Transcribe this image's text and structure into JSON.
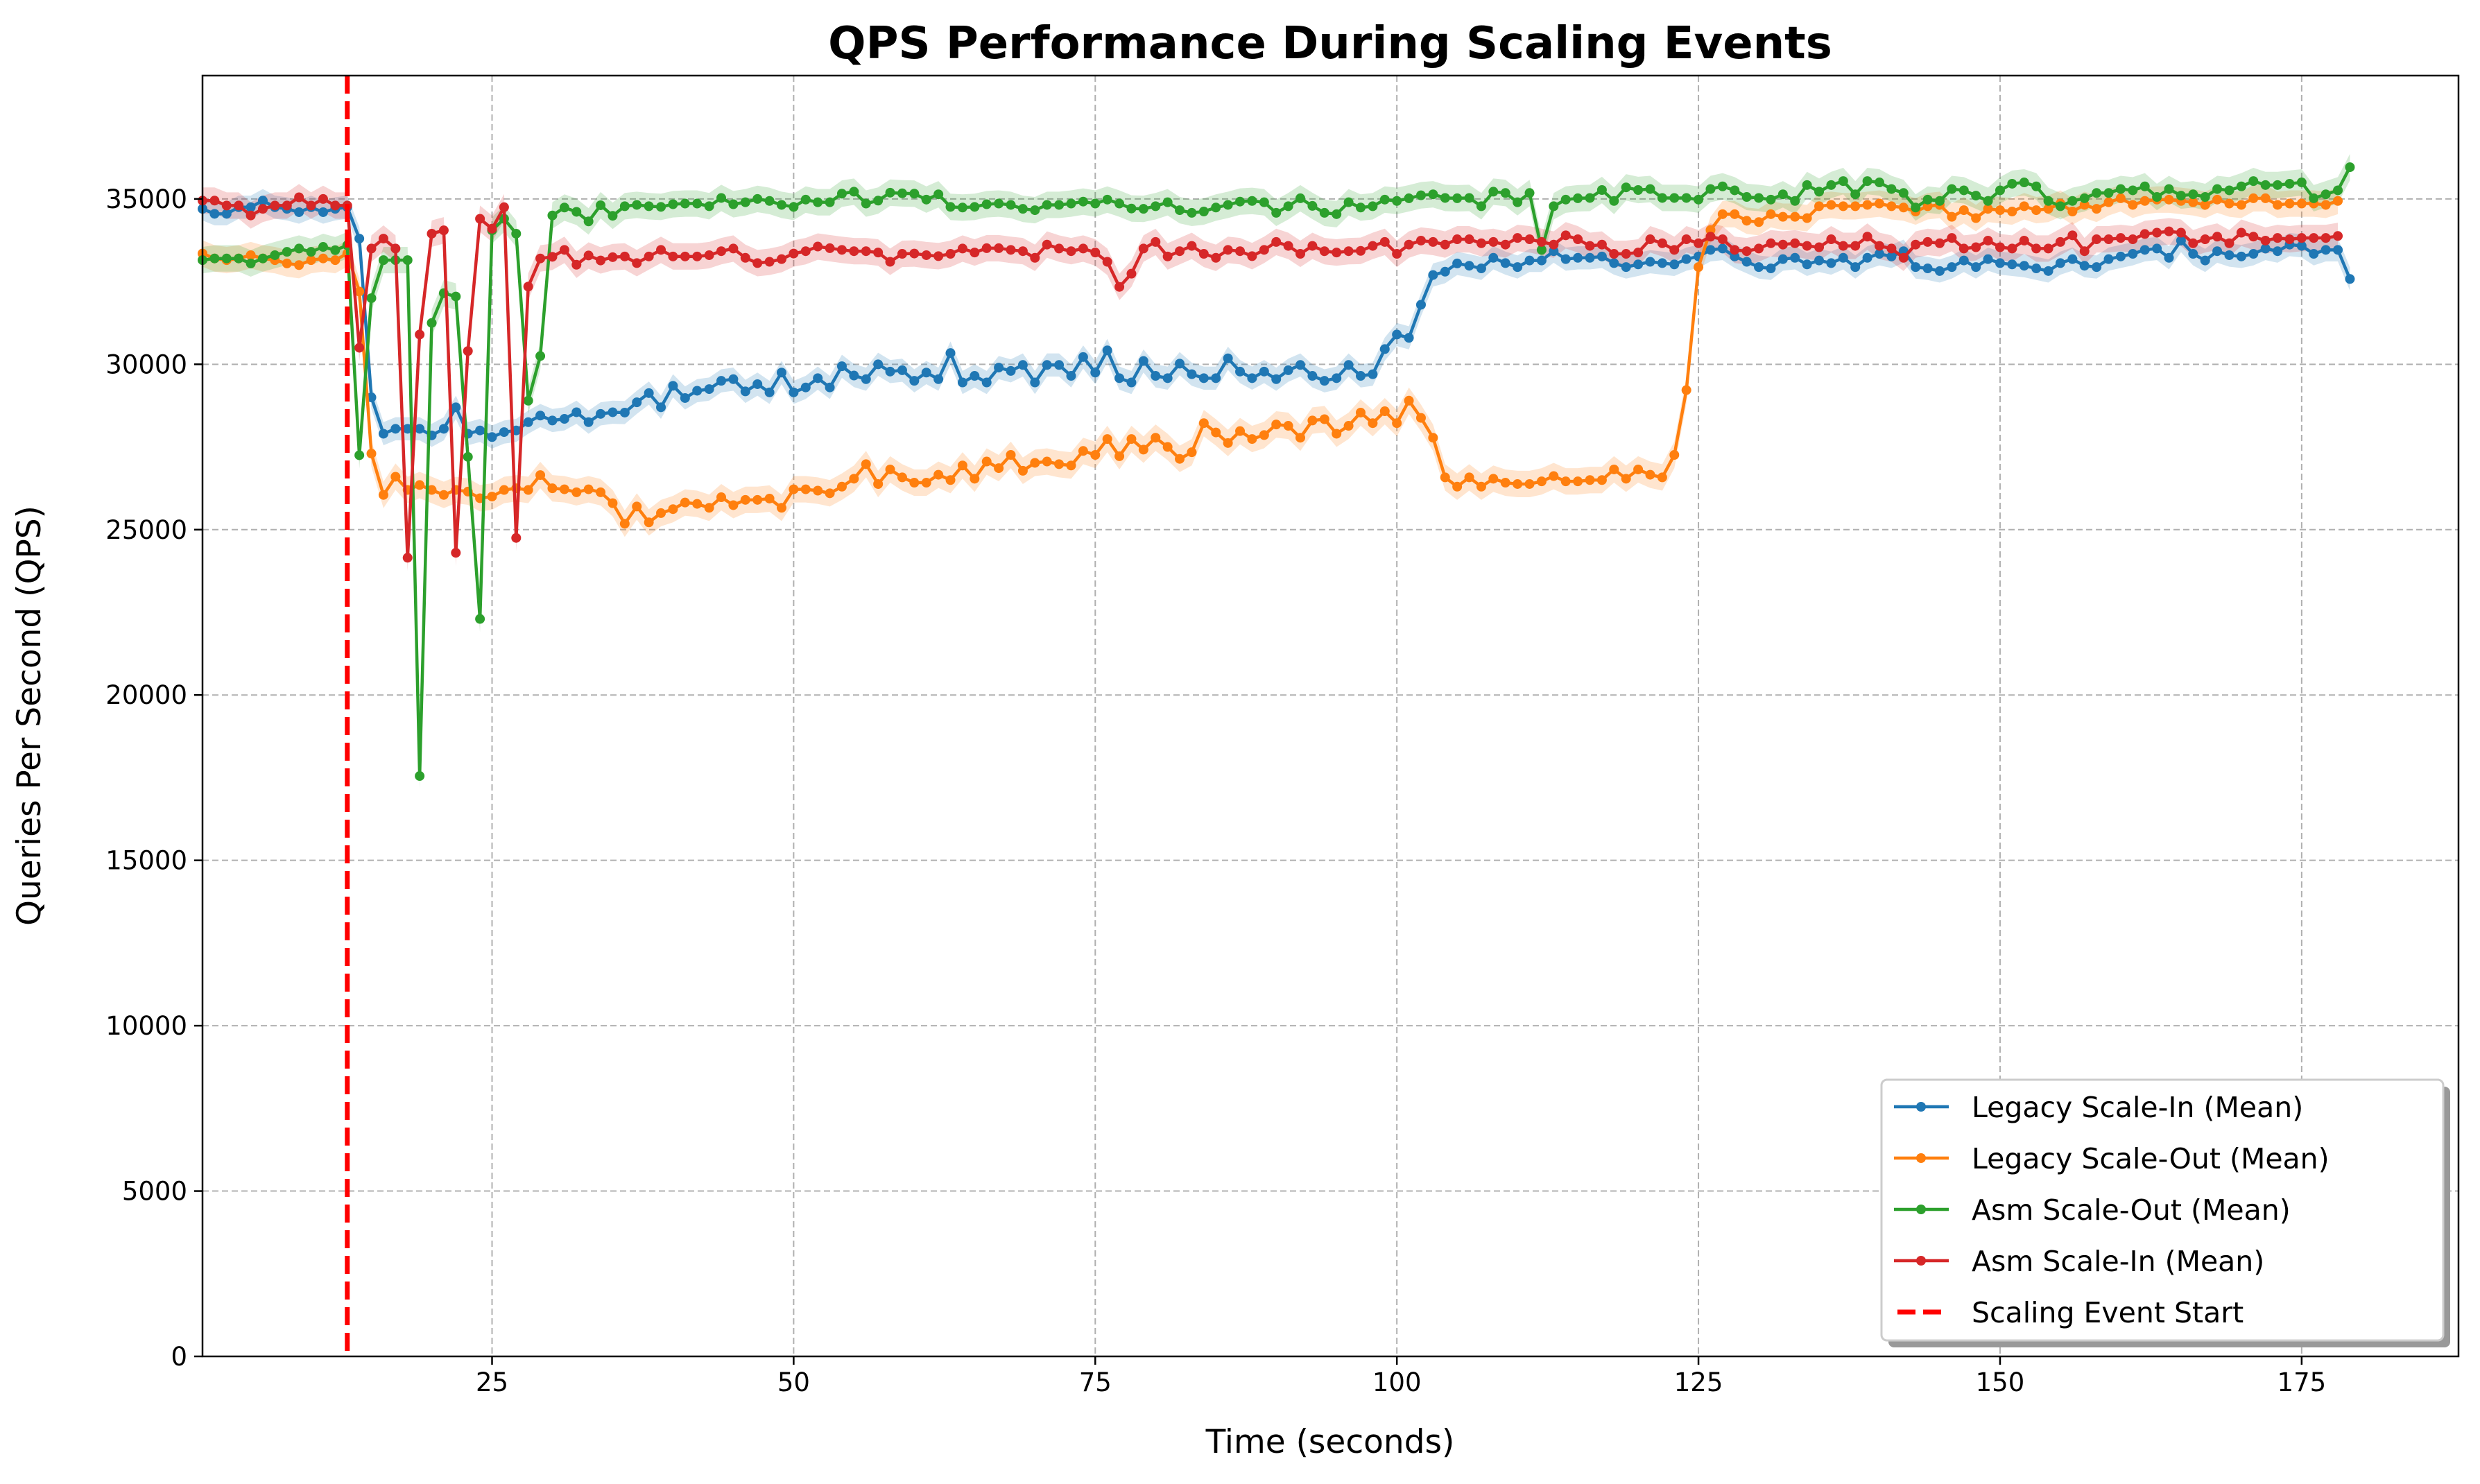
{
  "chart_data": {
    "type": "line",
    "title": "QPS Performance During Scaling Events",
    "xlabel": "Time (seconds)",
    "ylabel": "Queries Per Second (QPS)",
    "xlim": [
      1,
      188
    ],
    "ylim": [
      0,
      38730
    ],
    "xticks": [
      25,
      50,
      75,
      100,
      125,
      150,
      175
    ],
    "yticks": [
      0,
      5000,
      10000,
      15000,
      20000,
      25000,
      30000,
      35000
    ],
    "grid": true,
    "legend_position": "lower-right",
    "x_start": 1,
    "event_line": {
      "label": "Scaling Event Start",
      "x": 13,
      "color": "#ff0000",
      "style": "dashed"
    },
    "series": [
      {
        "name": "Legacy Scale-In (Mean)",
        "color": "#1f77b4",
        "band_halfwidth": 350,
        "values": [
          34700,
          34550,
          34550,
          34750,
          34750,
          34950,
          34750,
          34700,
          34600,
          34750,
          34600,
          34700,
          34750,
          33800,
          29000,
          27900,
          28050,
          28050,
          28050,
          27850,
          28050,
          28700,
          27900,
          28000,
          27800,
          27950,
          28000,
          28250,
          28450,
          28300,
          28350,
          28550,
          28250,
          28500,
          28550,
          28540,
          28850,
          29130,
          28700,
          29350,
          28980,
          29200,
          29250,
          29500,
          29550,
          29180,
          29400,
          29150,
          29750,
          29150,
          29300,
          29580,
          29300,
          29940,
          29660,
          29550,
          30000,
          29780,
          29820,
          29500,
          29750,
          29550,
          30340,
          29450,
          29650,
          29450,
          29900,
          29800,
          29980,
          29450,
          29980,
          29980,
          29650,
          30220,
          29750,
          30420,
          29580,
          29450,
          30100,
          29650,
          29580,
          30020,
          29700,
          29580,
          29580,
          30180,
          29780,
          29580,
          29780,
          29550,
          29820,
          29980,
          29650,
          29500,
          29580,
          29980,
          29650,
          29700,
          30460,
          30900,
          30800,
          31800,
          32700,
          32800,
          33050,
          32980,
          32900,
          33220,
          33060,
          32940,
          33140,
          33140,
          33420,
          33180,
          33220,
          33220,
          33260,
          33060,
          32940,
          33020,
          33100,
          33060,
          33020,
          33180,
          33260,
          33460,
          33500,
          33260,
          33100,
          32940,
          32900,
          33180,
          33220,
          33020,
          33140,
          33060,
          33220,
          32940,
          33220,
          33340,
          33260,
          33420,
          32940,
          32900,
          32820,
          32940,
          33140,
          32940,
          33180,
          33060,
          33020,
          32980,
          32900,
          32820,
          33060,
          33180,
          32980,
          32940,
          33180,
          33260,
          33340,
          33460,
          33500,
          33220,
          33740,
          33340,
          33140,
          33420,
          33300,
          33260,
          33340,
          33500,
          33420,
          33620,
          33580,
          33340,
          33460,
          33460,
          32580
        ]
      },
      {
        "name": "Legacy Scale-Out (Mean)",
        "color": "#ff7f0e",
        "band_halfwidth": 400,
        "values": [
          33350,
          33200,
          33150,
          33200,
          33300,
          33200,
          33150,
          33050,
          33000,
          33150,
          33200,
          33150,
          33350,
          32200,
          27300,
          26050,
          26600,
          26200,
          26350,
          26200,
          26050,
          26200,
          26150,
          25950,
          26000,
          26200,
          26250,
          26200,
          26650,
          26250,
          26220,
          26130,
          26220,
          26130,
          25800,
          25180,
          25700,
          25220,
          25500,
          25620,
          25820,
          25780,
          25660,
          25980,
          25740,
          25900,
          25900,
          25940,
          25660,
          26220,
          26220,
          26180,
          26100,
          26300,
          26540,
          26980,
          26380,
          26820,
          26580,
          26420,
          26420,
          26660,
          26500,
          26940,
          26540,
          27060,
          26860,
          27260,
          26780,
          27020,
          27060,
          26980,
          26940,
          27380,
          27260,
          27740,
          27220,
          27740,
          27420,
          27780,
          27500,
          27140,
          27340,
          28220,
          27940,
          27620,
          27980,
          27740,
          27860,
          28180,
          28140,
          27780,
          28300,
          28340,
          27900,
          28140,
          28540,
          28220,
          28580,
          28220,
          28900,
          28380,
          27780,
          26580,
          26300,
          26580,
          26300,
          26540,
          26420,
          26380,
          26380,
          26460,
          26620,
          26460,
          26460,
          26500,
          26500,
          26820,
          26540,
          26820,
          26660,
          26580,
          27260,
          29220,
          32940,
          34060,
          34540,
          34540,
          34340,
          34300,
          34540,
          34460,
          34460,
          34420,
          34780,
          34820,
          34780,
          34780,
          34820,
          34860,
          34780,
          34740,
          34620,
          34780,
          34820,
          34460,
          34660,
          34420,
          34700,
          34660,
          34620,
          34780,
          34660,
          34700,
          34860,
          34620,
          34820,
          34700,
          34900,
          35020,
          34820,
          34940,
          34980,
          34980,
          34940,
          34900,
          34820,
          34980,
          34860,
          34820,
          35020,
          35020,
          34820,
          34860,
          34860,
          34860,
          34820,
          34940
        ]
      },
      {
        "name": "Asm Scale-Out (Mean)",
        "color": "#2ca02c",
        "band_halfwidth": 400,
        "values": [
          33150,
          33200,
          33200,
          33200,
          33050,
          33200,
          33300,
          33400,
          33500,
          33400,
          33550,
          33450,
          33600,
          27250,
          32000,
          33150,
          33150,
          33150,
          17550,
          31250,
          32150,
          32050,
          27200,
          22300,
          34050,
          34400,
          33950,
          28900,
          30250,
          34500,
          34740,
          34610,
          34320,
          34810,
          34490,
          34780,
          34820,
          34780,
          34760,
          34840,
          34860,
          34860,
          34780,
          35030,
          34840,
          34900,
          35000,
          34940,
          34820,
          34760,
          34980,
          34900,
          34900,
          35160,
          35220,
          34860,
          34950,
          35190,
          35170,
          35160,
          34980,
          35140,
          34760,
          34740,
          34760,
          34840,
          34860,
          34820,
          34700,
          34660,
          34820,
          34820,
          34860,
          34920,
          34860,
          34980,
          34860,
          34710,
          34700,
          34780,
          34900,
          34660,
          34580,
          34620,
          34740,
          34820,
          34920,
          34940,
          34900,
          34580,
          34780,
          35020,
          34790,
          34580,
          34540,
          34900,
          34740,
          34780,
          34980,
          34940,
          35020,
          35110,
          35140,
          35030,
          35020,
          35030,
          34780,
          35220,
          35180,
          34900,
          35180,
          33460,
          34780,
          34980,
          35020,
          35030,
          35270,
          34940,
          35350,
          35270,
          35300,
          35030,
          35030,
          35030,
          34980,
          35300,
          35380,
          35260,
          35060,
          35030,
          34980,
          35140,
          34940,
          35420,
          35220,
          35420,
          35540,
          35140,
          35540,
          35500,
          35300,
          35180,
          34740,
          34980,
          34940,
          35300,
          35260,
          35100,
          34940,
          35260,
          35460,
          35500,
          35380,
          34940,
          34780,
          34940,
          35020,
          35180,
          35180,
          35300,
          35260,
          35380,
          35060,
          35300,
          35100,
          35140,
          35060,
          35300,
          35260,
          35380,
          35540,
          35420,
          35420,
          35460,
          35500,
          35020,
          35140,
          35260,
          35960
        ]
      },
      {
        "name": "Asm Scale-In (Mean)",
        "color": "#d62728",
        "band_halfwidth": 400,
        "values": [
          34950,
          34950,
          34800,
          34800,
          34500,
          34700,
          34800,
          34800,
          35050,
          34800,
          35000,
          34800,
          34800,
          30500,
          33500,
          33800,
          33500,
          24150,
          30900,
          33950,
          34050,
          24300,
          30400,
          34400,
          34100,
          34750,
          24750,
          32350,
          33200,
          33250,
          33460,
          33010,
          33290,
          33140,
          33240,
          33260,
          33060,
          33260,
          33460,
          33260,
          33260,
          33260,
          33300,
          33420,
          33500,
          33220,
          33060,
          33100,
          33180,
          33350,
          33420,
          33560,
          33510,
          33460,
          33420,
          33420,
          33380,
          33100,
          33340,
          33350,
          33300,
          33270,
          33340,
          33500,
          33380,
          33510,
          33510,
          33460,
          33420,
          33220,
          33620,
          33500,
          33420,
          33500,
          33380,
          33100,
          32340,
          32740,
          33500,
          33700,
          33260,
          33420,
          33580,
          33340,
          33220,
          33460,
          33420,
          33270,
          33460,
          33700,
          33580,
          33340,
          33580,
          33420,
          33380,
          33420,
          33430,
          33580,
          33700,
          33340,
          33620,
          33740,
          33700,
          33620,
          33780,
          33780,
          33660,
          33700,
          33620,
          33820,
          33780,
          33700,
          33620,
          33900,
          33780,
          33580,
          33620,
          33340,
          33340,
          33380,
          33780,
          33660,
          33460,
          33780,
          33660,
          33860,
          33780,
          33460,
          33420,
          33500,
          33660,
          33620,
          33660,
          33580,
          33540,
          33780,
          33580,
          33580,
          33860,
          33580,
          33500,
          33220,
          33620,
          33700,
          33660,
          33820,
          33500,
          33540,
          33740,
          33540,
          33500,
          33740,
          33500,
          33500,
          33700,
          33900,
          33420,
          33780,
          33780,
          33820,
          33780,
          33940,
          33980,
          34020,
          33980,
          33660,
          33780,
          33860,
          33660,
          33980,
          33860,
          33740,
          33820,
          33780,
          33820,
          33820,
          33820,
          33880
        ]
      }
    ]
  }
}
